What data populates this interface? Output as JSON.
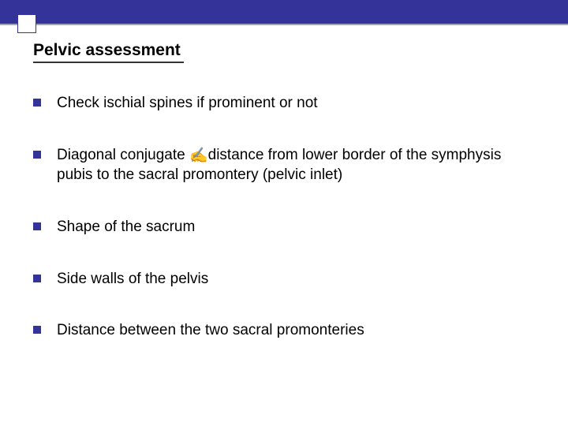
{
  "theme": {
    "topbar_color": "#333399",
    "bullet_color": "#333399",
    "underline_color": "#a0a0b8",
    "background": "#ffffff",
    "text_color": "#000000",
    "title_fontsize": 21,
    "body_fontsize": 19
  },
  "slide": {
    "title": "Pelvic assessment",
    "bullets": [
      {
        "text": "Check ischial  spines if prominent or not"
      },
      {
        "text_pre": "Diagonal conjugate ",
        "arrow": "✍",
        "text_post": "distance from lower border of the symphysis pubis to the sacral promontery (pelvic inlet)"
      },
      {
        "text": "Shape of the sacrum"
      },
      {
        "text": "Side walls of the pelvis"
      },
      {
        "text": "Distance between the two sacral promonteries"
      }
    ]
  }
}
